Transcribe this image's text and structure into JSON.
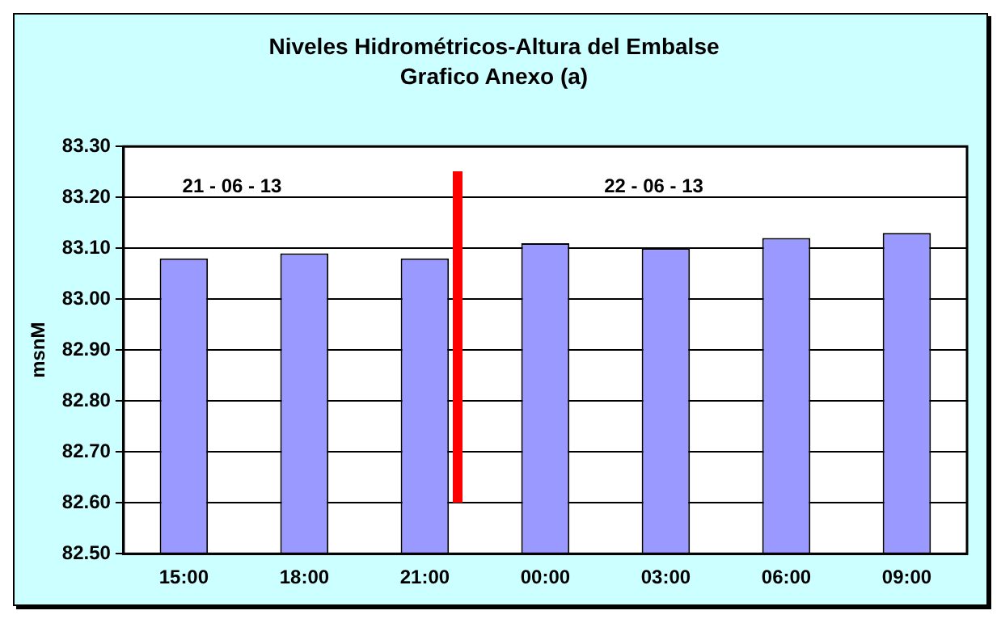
{
  "chart_data": {
    "type": "bar",
    "title": "Niveles Hidrométricos-Altura del Embalse",
    "subtitle": "Grafico Anexo (a)",
    "ylabel": "msnM",
    "categories": [
      "15:00",
      "18:00",
      "21:00",
      "00:00",
      "03:00",
      "06:00",
      "09:00"
    ],
    "values": [
      83.08,
      83.09,
      83.08,
      83.11,
      83.1,
      83.12,
      83.13
    ],
    "color": "#9999ff",
    "ylim": [
      82.5,
      83.3
    ],
    "yticks": [
      {
        "value": 82.5,
        "label": "82.50"
      },
      {
        "value": 82.6,
        "label": "82.60"
      },
      {
        "value": 82.7,
        "label": "82.70"
      },
      {
        "value": 82.8,
        "label": "82.80"
      },
      {
        "value": 82.9,
        "label": "82.90"
      },
      {
        "value": 83.0,
        "label": "83.00"
      },
      {
        "value": 83.1,
        "label": "83.10"
      },
      {
        "value": 83.2,
        "label": "83.20"
      },
      {
        "value": 83.3,
        "label": "83.30"
      }
    ],
    "grid": "y",
    "legend": false,
    "annotations": [
      "21 - 06 - 13",
      "22 - 06 - 13"
    ]
  }
}
